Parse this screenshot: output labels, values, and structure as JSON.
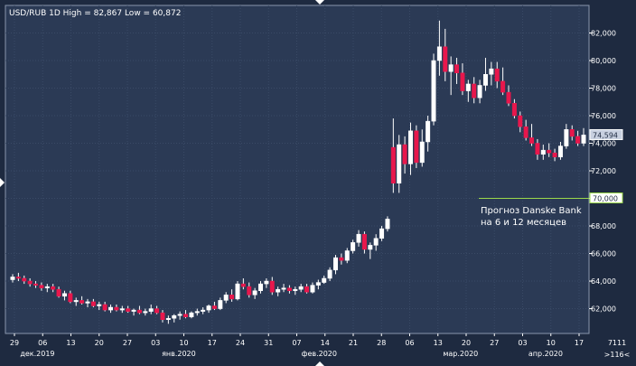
{
  "chart_data": {
    "type": "candlestick",
    "title": "USD/RUB 1D High = 82,867 Low = 60,872",
    "y_range": [
      60.2,
      84.0
    ],
    "y_ticks": [
      "62,000",
      "64,000",
      "66,000",
      "68,000",
      "70,000",
      "72,000",
      "74,000",
      "76,000",
      "78,000",
      "80,000",
      "82,000"
    ],
    "y_tick_values": [
      62,
      64,
      66,
      68,
      70,
      72,
      74,
      76,
      78,
      80,
      82
    ],
    "x_ticks": [
      "29",
      "06",
      "13",
      "20",
      "27",
      "03",
      "10",
      "17",
      "24",
      "31",
      "07",
      "14",
      "21",
      "28",
      "06",
      "13",
      "20",
      "27",
      "03",
      "10",
      "17"
    ],
    "months": [
      "дек.2019",
      "янв.2020",
      "фев.2020",
      "мар.2020",
      "апр.2020"
    ],
    "month_tick_index": [
      2,
      7,
      12,
      17,
      20
    ],
    "right_corner_labels": [
      "7111",
      ">116<"
    ],
    "last_price_label": "74,594",
    "last_price_value": 74.594,
    "forecast_label": "70,000",
    "forecast_value": 70.0,
    "forecast_annotation": [
      "Прогноз Danske Bank",
      "на 6 и 12 месяцев"
    ],
    "colors": {
      "up": "#ffffff",
      "down": "#e8174c",
      "bg": "#1e2a40",
      "grid": "#3a4a66",
      "forecast": "#9bd84b",
      "badge": "#c8d0e0"
    },
    "candles": [
      {
        "o": 64.1,
        "h": 64.5,
        "l": 63.9,
        "c": 64.3
      },
      {
        "o": 64.3,
        "h": 64.6,
        "l": 64.0,
        "c": 64.2
      },
      {
        "o": 64.2,
        "h": 64.4,
        "l": 63.8,
        "c": 64.0
      },
      {
        "o": 64.0,
        "h": 64.2,
        "l": 63.6,
        "c": 63.8
      },
      {
        "o": 63.8,
        "h": 64.0,
        "l": 63.5,
        "c": 63.7
      },
      {
        "o": 63.7,
        "h": 63.9,
        "l": 63.3,
        "c": 63.5
      },
      {
        "o": 63.5,
        "h": 63.8,
        "l": 63.2,
        "c": 63.6
      },
      {
        "o": 63.6,
        "h": 63.8,
        "l": 63.2,
        "c": 63.4
      },
      {
        "o": 63.4,
        "h": 63.6,
        "l": 62.8,
        "c": 62.9
      },
      {
        "o": 62.9,
        "h": 63.3,
        "l": 62.6,
        "c": 63.1
      },
      {
        "o": 63.1,
        "h": 63.3,
        "l": 62.4,
        "c": 62.5
      },
      {
        "o": 62.5,
        "h": 62.8,
        "l": 62.2,
        "c": 62.6
      },
      {
        "o": 62.6,
        "h": 62.9,
        "l": 62.3,
        "c": 62.4
      },
      {
        "o": 62.4,
        "h": 62.7,
        "l": 62.1,
        "c": 62.5
      },
      {
        "o": 62.5,
        "h": 62.7,
        "l": 62.1,
        "c": 62.2
      },
      {
        "o": 62.2,
        "h": 62.5,
        "l": 61.9,
        "c": 62.3
      },
      {
        "o": 62.3,
        "h": 62.5,
        "l": 61.8,
        "c": 61.9
      },
      {
        "o": 61.9,
        "h": 62.3,
        "l": 61.7,
        "c": 62.1
      },
      {
        "o": 62.1,
        "h": 62.3,
        "l": 61.8,
        "c": 61.9
      },
      {
        "o": 61.9,
        "h": 62.2,
        "l": 61.7,
        "c": 62.0
      },
      {
        "o": 62.0,
        "h": 62.2,
        "l": 61.7,
        "c": 61.8
      },
      {
        "o": 61.8,
        "h": 62.0,
        "l": 61.5,
        "c": 61.9
      },
      {
        "o": 61.9,
        "h": 62.2,
        "l": 61.6,
        "c": 61.7
      },
      {
        "o": 61.7,
        "h": 62.0,
        "l": 61.5,
        "c": 61.8
      },
      {
        "o": 61.8,
        "h": 62.3,
        "l": 61.6,
        "c": 62.0
      },
      {
        "o": 62.0,
        "h": 62.2,
        "l": 61.6,
        "c": 61.7
      },
      {
        "o": 61.7,
        "h": 61.9,
        "l": 61.0,
        "c": 61.2
      },
      {
        "o": 61.2,
        "h": 61.5,
        "l": 60.9,
        "c": 61.3
      },
      {
        "o": 61.3,
        "h": 61.6,
        "l": 61.0,
        "c": 61.5
      },
      {
        "o": 61.5,
        "h": 61.8,
        "l": 61.2,
        "c": 61.6
      },
      {
        "o": 61.6,
        "h": 61.9,
        "l": 61.3,
        "c": 61.4
      },
      {
        "o": 61.4,
        "h": 61.8,
        "l": 61.3,
        "c": 61.7
      },
      {
        "o": 61.7,
        "h": 62.0,
        "l": 61.5,
        "c": 61.8
      },
      {
        "o": 61.8,
        "h": 62.1,
        "l": 61.6,
        "c": 61.9
      },
      {
        "o": 61.9,
        "h": 62.3,
        "l": 61.7,
        "c": 62.2
      },
      {
        "o": 62.2,
        "h": 62.5,
        "l": 61.9,
        "c": 62.0
      },
      {
        "o": 62.0,
        "h": 62.8,
        "l": 61.9,
        "c": 62.6
      },
      {
        "o": 62.6,
        "h": 63.2,
        "l": 62.4,
        "c": 63.0
      },
      {
        "o": 63.0,
        "h": 63.4,
        "l": 62.5,
        "c": 62.7
      },
      {
        "o": 62.7,
        "h": 64.0,
        "l": 62.6,
        "c": 63.8
      },
      {
        "o": 63.8,
        "h": 64.2,
        "l": 63.4,
        "c": 63.6
      },
      {
        "o": 63.6,
        "h": 63.9,
        "l": 62.8,
        "c": 63.0
      },
      {
        "o": 63.0,
        "h": 63.5,
        "l": 62.7,
        "c": 63.3
      },
      {
        "o": 63.3,
        "h": 64.0,
        "l": 63.1,
        "c": 63.8
      },
      {
        "o": 63.8,
        "h": 64.2,
        "l": 63.5,
        "c": 64.0
      },
      {
        "o": 64.0,
        "h": 64.3,
        "l": 63.0,
        "c": 63.2
      },
      {
        "o": 63.2,
        "h": 63.6,
        "l": 62.9,
        "c": 63.4
      },
      {
        "o": 63.4,
        "h": 63.8,
        "l": 63.2,
        "c": 63.5
      },
      {
        "o": 63.5,
        "h": 63.7,
        "l": 63.1,
        "c": 63.3
      },
      {
        "o": 63.3,
        "h": 63.6,
        "l": 63.0,
        "c": 63.4
      },
      {
        "o": 63.4,
        "h": 63.8,
        "l": 63.2,
        "c": 63.6
      },
      {
        "o": 63.6,
        "h": 63.8,
        "l": 63.1,
        "c": 63.2
      },
      {
        "o": 63.2,
        "h": 63.9,
        "l": 63.1,
        "c": 63.7
      },
      {
        "o": 63.7,
        "h": 64.1,
        "l": 63.4,
        "c": 63.9
      },
      {
        "o": 63.9,
        "h": 64.4,
        "l": 63.8,
        "c": 64.2
      },
      {
        "o": 64.2,
        "h": 65.0,
        "l": 64.0,
        "c": 64.8
      },
      {
        "o": 64.8,
        "h": 65.9,
        "l": 64.5,
        "c": 65.7
      },
      {
        "o": 65.7,
        "h": 66.0,
        "l": 65.2,
        "c": 65.5
      },
      {
        "o": 65.5,
        "h": 66.4,
        "l": 65.3,
        "c": 66.2
      },
      {
        "o": 66.2,
        "h": 67.0,
        "l": 66.0,
        "c": 66.8
      },
      {
        "o": 66.8,
        "h": 67.7,
        "l": 66.5,
        "c": 67.4
      },
      {
        "o": 67.4,
        "h": 67.6,
        "l": 66.0,
        "c": 66.3
      },
      {
        "o": 66.3,
        "h": 66.8,
        "l": 65.6,
        "c": 66.6
      },
      {
        "o": 66.6,
        "h": 67.4,
        "l": 66.2,
        "c": 67.1
      },
      {
        "o": 67.1,
        "h": 68.0,
        "l": 66.9,
        "c": 67.8
      },
      {
        "o": 67.8,
        "h": 68.7,
        "l": 67.6,
        "c": 68.5
      },
      {
        "o": 73.7,
        "h": 75.8,
        "l": 70.4,
        "c": 71.1
      },
      {
        "o": 71.1,
        "h": 74.6,
        "l": 70.4,
        "c": 73.9
      },
      {
        "o": 73.9,
        "h": 74.5,
        "l": 71.8,
        "c": 72.5
      },
      {
        "o": 72.5,
        "h": 75.5,
        "l": 71.7,
        "c": 74.9
      },
      {
        "o": 74.9,
        "h": 75.3,
        "l": 72.2,
        "c": 72.6
      },
      {
        "o": 72.6,
        "h": 75.0,
        "l": 72.3,
        "c": 74.1
      },
      {
        "o": 74.1,
        "h": 76.0,
        "l": 73.4,
        "c": 75.6
      },
      {
        "o": 75.6,
        "h": 80.5,
        "l": 75.3,
        "c": 80.0
      },
      {
        "o": 80.0,
        "h": 82.9,
        "l": 78.9,
        "c": 81.0
      },
      {
        "o": 81.0,
        "h": 82.3,
        "l": 78.5,
        "c": 79.2
      },
      {
        "o": 79.2,
        "h": 80.3,
        "l": 77.5,
        "c": 79.7
      },
      {
        "o": 79.7,
        "h": 80.2,
        "l": 78.3,
        "c": 79.1
      },
      {
        "o": 79.1,
        "h": 79.8,
        "l": 77.5,
        "c": 77.8
      },
      {
        "o": 77.8,
        "h": 78.6,
        "l": 77.0,
        "c": 78.3
      },
      {
        "o": 78.3,
        "h": 78.8,
        "l": 76.9,
        "c": 77.3
      },
      {
        "o": 77.3,
        "h": 78.6,
        "l": 76.9,
        "c": 78.2
      },
      {
        "o": 78.2,
        "h": 80.2,
        "l": 77.8,
        "c": 79.0
      },
      {
        "o": 79.0,
        "h": 79.9,
        "l": 78.2,
        "c": 79.4
      },
      {
        "o": 79.4,
        "h": 79.9,
        "l": 78.0,
        "c": 78.5
      },
      {
        "o": 78.5,
        "h": 79.5,
        "l": 77.5,
        "c": 77.7
      },
      {
        "o": 77.7,
        "h": 78.2,
        "l": 76.7,
        "c": 76.9
      },
      {
        "o": 76.9,
        "h": 77.2,
        "l": 75.8,
        "c": 76.0
      },
      {
        "o": 76.0,
        "h": 76.3,
        "l": 74.8,
        "c": 75.2
      },
      {
        "o": 75.2,
        "h": 75.7,
        "l": 74.2,
        "c": 74.4
      },
      {
        "o": 74.4,
        "h": 75.4,
        "l": 73.8,
        "c": 74.0
      },
      {
        "o": 74.0,
        "h": 74.3,
        "l": 72.8,
        "c": 73.2
      },
      {
        "o": 73.2,
        "h": 73.9,
        "l": 72.8,
        "c": 73.5
      },
      {
        "o": 73.5,
        "h": 74.0,
        "l": 73.0,
        "c": 73.3
      },
      {
        "o": 73.3,
        "h": 73.6,
        "l": 72.7,
        "c": 73.0
      },
      {
        "o": 73.0,
        "h": 74.1,
        "l": 72.8,
        "c": 73.8
      },
      {
        "o": 73.8,
        "h": 75.4,
        "l": 73.6,
        "c": 75.0
      },
      {
        "o": 75.0,
        "h": 75.3,
        "l": 74.2,
        "c": 74.5
      },
      {
        "o": 74.5,
        "h": 74.9,
        "l": 73.8,
        "c": 74.0
      },
      {
        "o": 74.0,
        "h": 75.1,
        "l": 73.8,
        "c": 74.6
      }
    ]
  }
}
